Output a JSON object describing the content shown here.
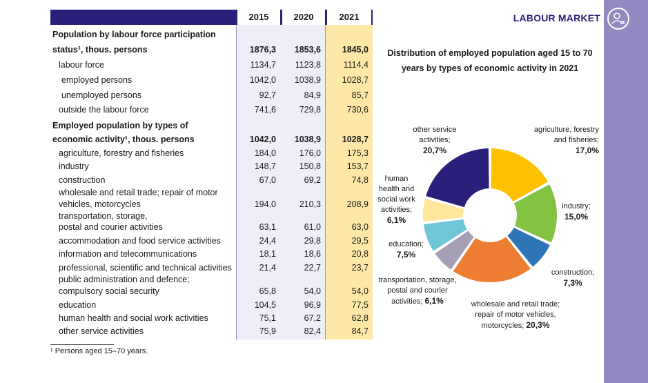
{
  "section_title": "LABOUR MARKET",
  "badge_icon": "person-stats-icon",
  "table": {
    "years": [
      "2015",
      "2020",
      "2021"
    ],
    "rows": [
      {
        "label": "Population by labour force participation",
        "bold": true,
        "values": [
          "",
          "",
          ""
        ]
      },
      {
        "label": "status¹, thous. persons",
        "bold": true,
        "values": [
          "1876,3",
          "1853,6",
          "1845,0"
        ]
      },
      {
        "label": "labour force",
        "indent": 1,
        "values": [
          "1134,7",
          "1123,8",
          "1114,4"
        ]
      },
      {
        "label": "employed persons",
        "indent": 2,
        "values": [
          "1042,0",
          "1038,9",
          "1028,7"
        ]
      },
      {
        "label": "unemployed persons",
        "indent": 2,
        "values": [
          "92,7",
          "84,9",
          "85,7"
        ]
      },
      {
        "label": "outside the labour force",
        "indent": 1,
        "values": [
          "741,6",
          "729,8",
          "730,6"
        ]
      },
      {
        "label": "Employed population by types of",
        "bold": true,
        "values": [
          "",
          "",
          ""
        ]
      },
      {
        "label": "economic activity¹, thous. persons",
        "bold": true,
        "values": [
          "1042,0",
          "1038,9",
          "1028,7"
        ]
      },
      {
        "label": "agriculture, forestry and fisheries",
        "indent": 1,
        "values": [
          "184,0",
          "176,0",
          "175,3"
        ]
      },
      {
        "label": "industry",
        "indent": 1,
        "values": [
          "148,7",
          "150,8",
          "153,7"
        ]
      },
      {
        "label": "construction",
        "indent": 1,
        "values": [
          "67,0",
          "69,2",
          "74,8"
        ]
      },
      {
        "label": "wholesale and retail trade; repair of motor",
        "indent": 1,
        "values": [
          "",
          "",
          ""
        ]
      },
      {
        "label": "vehicles, motorcycles",
        "indent": 1,
        "values": [
          "194,0",
          "210,3",
          "208,9"
        ]
      },
      {
        "label": "transportation, storage,",
        "indent": 1,
        "values": [
          "",
          "",
          ""
        ]
      },
      {
        "label": "postal and courier activities",
        "indent": 1,
        "values": [
          "63,1",
          "61,0",
          "63,0"
        ]
      },
      {
        "label": "accommodation and food service activities",
        "indent": 1,
        "values": [
          "24,4",
          "29,8",
          "29,5"
        ]
      },
      {
        "label": "information and telecommunications",
        "indent": 1,
        "values": [
          "18,1",
          "18,6",
          "20,8"
        ]
      },
      {
        "label": "professional, scientific and technical activities",
        "indent": 1,
        "values": [
          "21,4",
          "22,7",
          "23,7"
        ]
      },
      {
        "label": "public administration and defence;",
        "indent": 1,
        "values": [
          "",
          "",
          ""
        ]
      },
      {
        "label": "compulsory social security",
        "indent": 1,
        "values": [
          "65,8",
          "54,0",
          "54,0"
        ]
      },
      {
        "label": "education",
        "indent": 1,
        "values": [
          "104,5",
          "96,9",
          "77,5"
        ]
      },
      {
        "label": "human health and social work activities",
        "indent": 1,
        "values": [
          "75,1",
          "67,2",
          "62,8"
        ]
      },
      {
        "label": "other service activities",
        "indent": 1,
        "values": [
          "75,9",
          "82,4",
          "84,7"
        ]
      }
    ],
    "footnote": "¹ Persons aged 15–70 years."
  },
  "chart_data": {
    "type": "pie",
    "title": "Distribution of employed population aged 15 to 70 years by types of economic activity in 2021",
    "slices": [
      {
        "name": "agriculture, forestry and fisheries",
        "value": 17.0,
        "label": "17,0%",
        "color": "#ffc000"
      },
      {
        "name": "industry",
        "value": 15.0,
        "label": "15,0%",
        "color": "#82c341"
      },
      {
        "name": "construction",
        "value": 7.3,
        "label": "7,3%",
        "color": "#2e75b6"
      },
      {
        "name": "wholesale and retail trade; repair of motor vehicles, motorcycles",
        "value": 20.3,
        "label": "20,3%",
        "color": "#ed7d31"
      },
      {
        "name": "transportation, storage, postal and courier activities",
        "value": 6.1,
        "label": "6,1%",
        "color": "#a5a0b5"
      },
      {
        "name": "education",
        "value": 7.5,
        "label": "7,5%",
        "color": "#6fc6d6"
      },
      {
        "name": "human health and social work activities",
        "value": 6.1,
        "label": "6,1%",
        "color": "#ffe699"
      },
      {
        "name": "other service activities",
        "value": 20.7,
        "label": "20,7%",
        "color": "#2a1f7a"
      }
    ],
    "labels": {
      "agri": [
        "agriculture, forestry",
        "and fisheries;",
        "17,0%"
      ],
      "industry": [
        "industry;",
        "15,0%"
      ],
      "construction": [
        "construction;",
        "7,3%"
      ],
      "trade": [
        "wholesale and retail trade;",
        "repair of motor vehicles,",
        "motorcycles; ",
        "20,3%"
      ],
      "transport": [
        "transportation, storage,",
        "postal and courier",
        "activities; ",
        "6,1%"
      ],
      "education": [
        "education;",
        "7,5%"
      ],
      "health": [
        "human",
        "health and",
        "social work",
        "activities;",
        "6,1%"
      ],
      "other": [
        "other service",
        "activities;",
        "20,7%"
      ]
    }
  }
}
